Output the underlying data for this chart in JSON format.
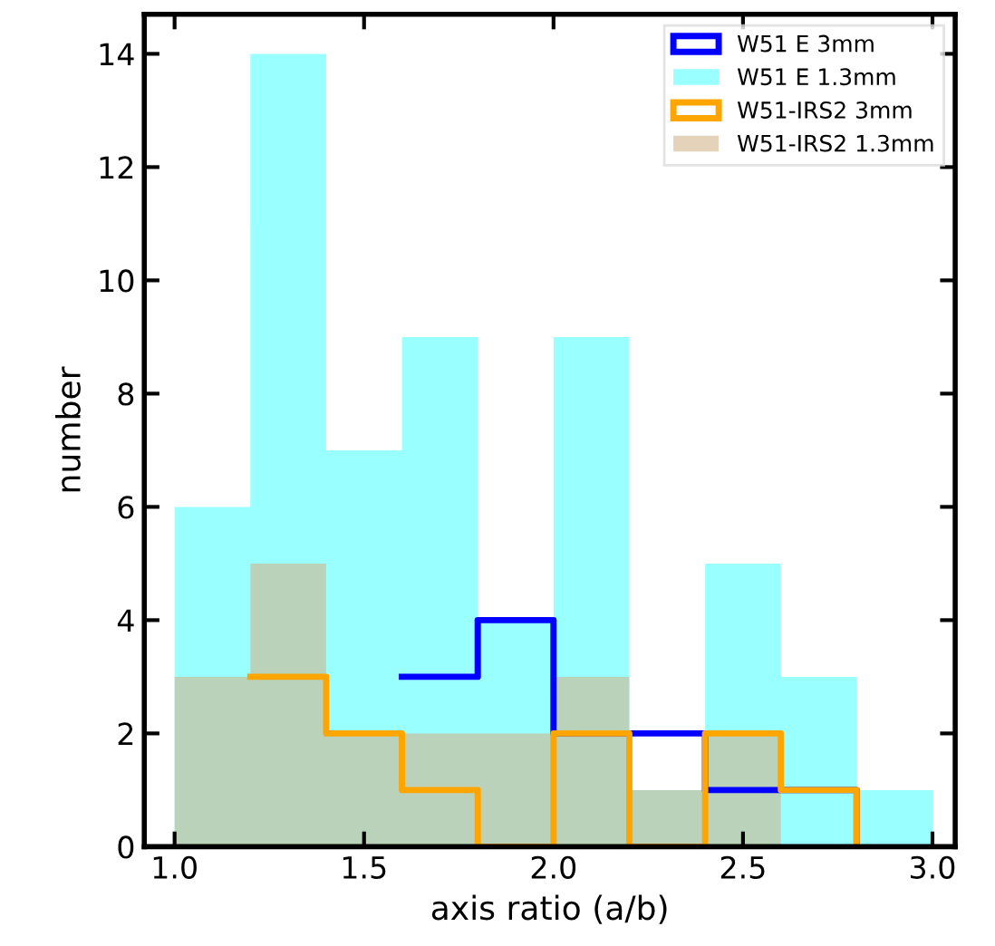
{
  "chart_data": {
    "type": "histogram",
    "xlabel": "axis ratio (a/b)",
    "ylabel": "number",
    "bins": [
      1.0,
      1.2,
      1.4,
      1.6,
      1.8,
      2.0,
      2.2,
      2.4,
      2.6,
      2.8,
      3.0
    ],
    "series": [
      {
        "name": "W51 E 3mm",
        "type": "step",
        "color": "#0000ff",
        "x": [
          1.6,
          1.8,
          2.0,
          2.2,
          2.4,
          2.6,
          2.8
        ],
        "values": [
          3,
          4,
          2,
          2,
          1,
          1,
          0
        ]
      },
      {
        "name": "W51 E 1.3mm",
        "color": "#99ffff",
        "values": [
          6,
          14,
          7,
          9,
          4,
          9,
          1,
          5,
          3,
          1
        ]
      },
      {
        "name": "W51-IRS2 3mm",
        "type": "step",
        "color": "#ffa500",
        "x": [
          1.2,
          1.4,
          1.6,
          1.8,
          2.0,
          2.2,
          2.4,
          2.6,
          2.8
        ],
        "values": [
          3,
          2,
          1,
          0,
          2,
          0,
          2,
          1,
          0
        ]
      },
      {
        "name": "W51-IRS2 1.3mm",
        "color": "#d2b48c",
        "values": [
          3,
          5,
          2,
          2,
          2,
          3,
          1,
          2,
          0,
          0
        ]
      }
    ],
    "xlim": [
      0.92,
      3.06
    ],
    "xticks": [
      {
        "value": 1.0,
        "label": "1.0"
      },
      1.5,
      {
        "value": 2.0,
        "label": "2.0"
      },
      2.5,
      {
        "value": 3.0,
        "label": "3.0"
      }
    ],
    "ylim": [
      0,
      14.7
    ],
    "yticks": [
      0,
      2,
      4,
      6,
      8,
      10,
      12,
      14
    ],
    "grid": false,
    "legend": "top right"
  }
}
